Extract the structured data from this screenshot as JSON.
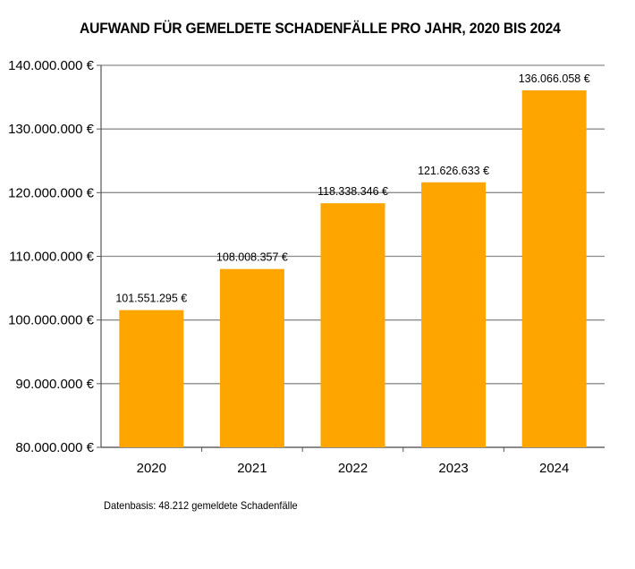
{
  "chart_data": {
    "type": "bar",
    "title": "AUFWAND FÜR GEMELDETE SCHADENFÄLLE PRO JAHR, 2020 BIS 2024",
    "categories": [
      "2020",
      "2021",
      "2022",
      "2023",
      "2024"
    ],
    "values": [
      101551295,
      108008357,
      118338346,
      121626633,
      136066058
    ],
    "data_labels": [
      "101.551.295 €",
      "108.008.357 €",
      "118.338.346 €",
      "121.626.633 €",
      "136.066.058 €"
    ],
    "ylim": [
      80000000,
      140000000
    ],
    "yticks": [
      80000000,
      90000000,
      100000000,
      110000000,
      120000000,
      130000000,
      140000000
    ],
    "ytick_labels": [
      "80.000.000 €",
      "90.000.000 €",
      "100.000.000 €",
      "110.000.000 €",
      "120.000.000 €",
      "130.000.000 €",
      "140.000.000 €"
    ],
    "grid": true,
    "bar_color": "#FFA500",
    "footnote": "Datenbasis: 48.212 gemeldete Schadenfälle"
  }
}
